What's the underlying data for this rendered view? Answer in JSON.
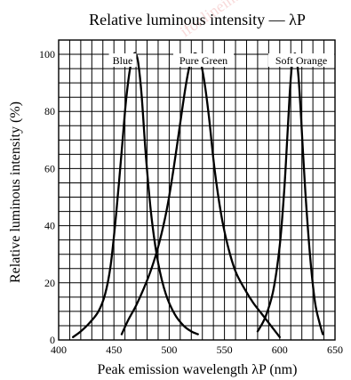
{
  "chart_data": {
    "type": "line",
    "title": "Relative luminous intensity — λP",
    "xlabel": "Peak emission wavelength  λP  (nm)",
    "ylabel": "Relative luminous intensity   (%)",
    "xlim": [
      400,
      650
    ],
    "ylim": [
      0,
      105
    ],
    "x_ticks": [
      400,
      450,
      500,
      550,
      600,
      650
    ],
    "y_ticks": [
      0,
      20,
      40,
      60,
      80,
      100
    ],
    "grid": true,
    "watermark": "ifonlineint",
    "series": [
      {
        "name": "Blue",
        "x": [
          413,
          420,
          428,
          436,
          442,
          447,
          452,
          457,
          461,
          465,
          468,
          470,
          472,
          475,
          479,
          484,
          490,
          497,
          505,
          513,
          520,
          526
        ],
        "y": [
          1,
          3,
          6,
          10,
          16,
          26,
          44,
          66,
          84,
          96,
          100,
          100,
          97,
          86,
          64,
          43,
          27,
          16,
          9,
          5,
          3,
          2
        ]
      },
      {
        "name": "Pure Green",
        "x": [
          457,
          463,
          470,
          477,
          484,
          491,
          498,
          504,
          510,
          515,
          519,
          522,
          525,
          528,
          532,
          536,
          541,
          547,
          553,
          560,
          568,
          576,
          584,
          592,
          600
        ],
        "y": [
          2,
          7,
          12,
          18,
          25,
          34,
          46,
          60,
          76,
          89,
          97,
          100,
          100,
          98,
          90,
          78,
          60,
          44,
          33,
          24,
          18,
          13,
          9,
          5,
          1
        ]
      },
      {
        "name": "Soft Orange",
        "x": [
          580,
          587,
          594,
          600,
          604,
          607,
          609,
          611,
          613,
          615,
          617,
          619,
          621,
          624,
          628,
          632,
          636,
          639
        ],
        "y": [
          3,
          8,
          17,
          33,
          52,
          72,
          86,
          96,
          100,
          99,
          92,
          80,
          66,
          47,
          27,
          13,
          6,
          2
        ]
      }
    ]
  }
}
